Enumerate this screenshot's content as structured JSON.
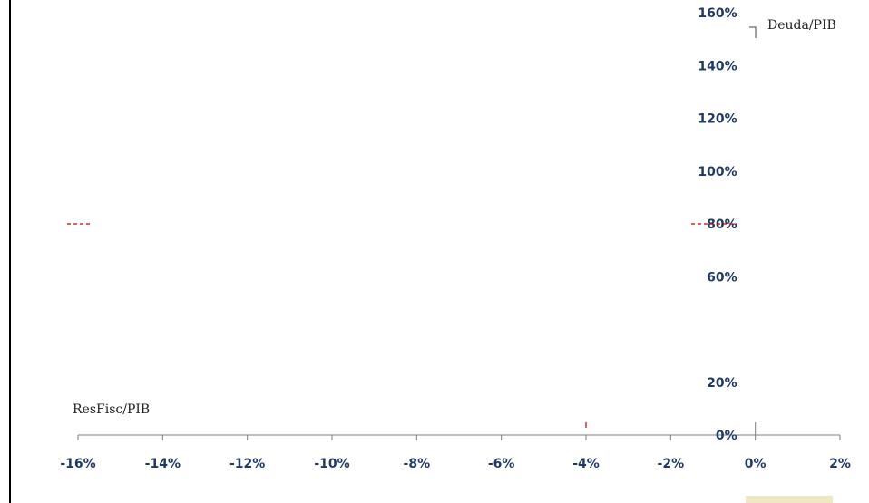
{
  "chart_data": {
    "type": "scatter",
    "xlabel": "ResFisc/PIB",
    "ylabel": "Deuda/PIB",
    "x_ticks": [
      "-16%",
      "-14%",
      "-12%",
      "-10%",
      "-8%",
      "-6%",
      "-4%",
      "-2%",
      "0%",
      "2%"
    ],
    "y_ticks": [
      "0%",
      "20%",
      "60%",
      "80%",
      "100%",
      "120%",
      "140%",
      "160%"
    ],
    "xlim": [
      -16,
      2
    ],
    "ylim": [
      0,
      160
    ],
    "units": "%",
    "grid": false,
    "reference_lines": [
      {
        "orientation": "horizontal",
        "value": 80,
        "style": "dashed",
        "color": "#cc0000"
      },
      {
        "orientation": "vertical",
        "value": -4,
        "style": "solid",
        "color": "#cc0000"
      }
    ],
    "series": []
  }
}
